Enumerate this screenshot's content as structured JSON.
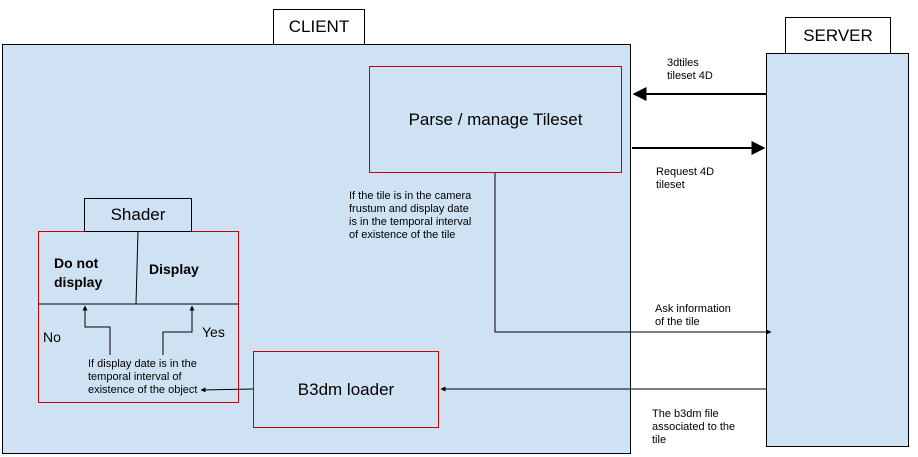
{
  "client": {
    "title": "CLIENT"
  },
  "server": {
    "title": "SERVER"
  },
  "parse_box": {
    "label": "Parse / manage Tileset"
  },
  "b3dm_box": {
    "label": "B3dm loader"
  },
  "shader": {
    "title": "Shader",
    "do_not_display": "Do not\ndisplay",
    "display": "Display",
    "no": "No",
    "yes": "Yes",
    "condition": "If display date is in the\ntemporal interval of\nexistence of the object"
  },
  "condition_tile": "If the tile is in the camera\nfrustum and display date\nis in the temporal interval\nof existence of the tile",
  "arrows": {
    "tileset_4d": "3dtiles\ntileset 4D",
    "request_4d": "Request 4D\ntileset",
    "ask_info": "Ask information\nof the tile",
    "b3dm_file": "The b3dm file\nassociated to the\ntile"
  },
  "colors": {
    "area_fill": "#cfe2f3",
    "box_border": "#cc0000",
    "line": "#000000"
  }
}
